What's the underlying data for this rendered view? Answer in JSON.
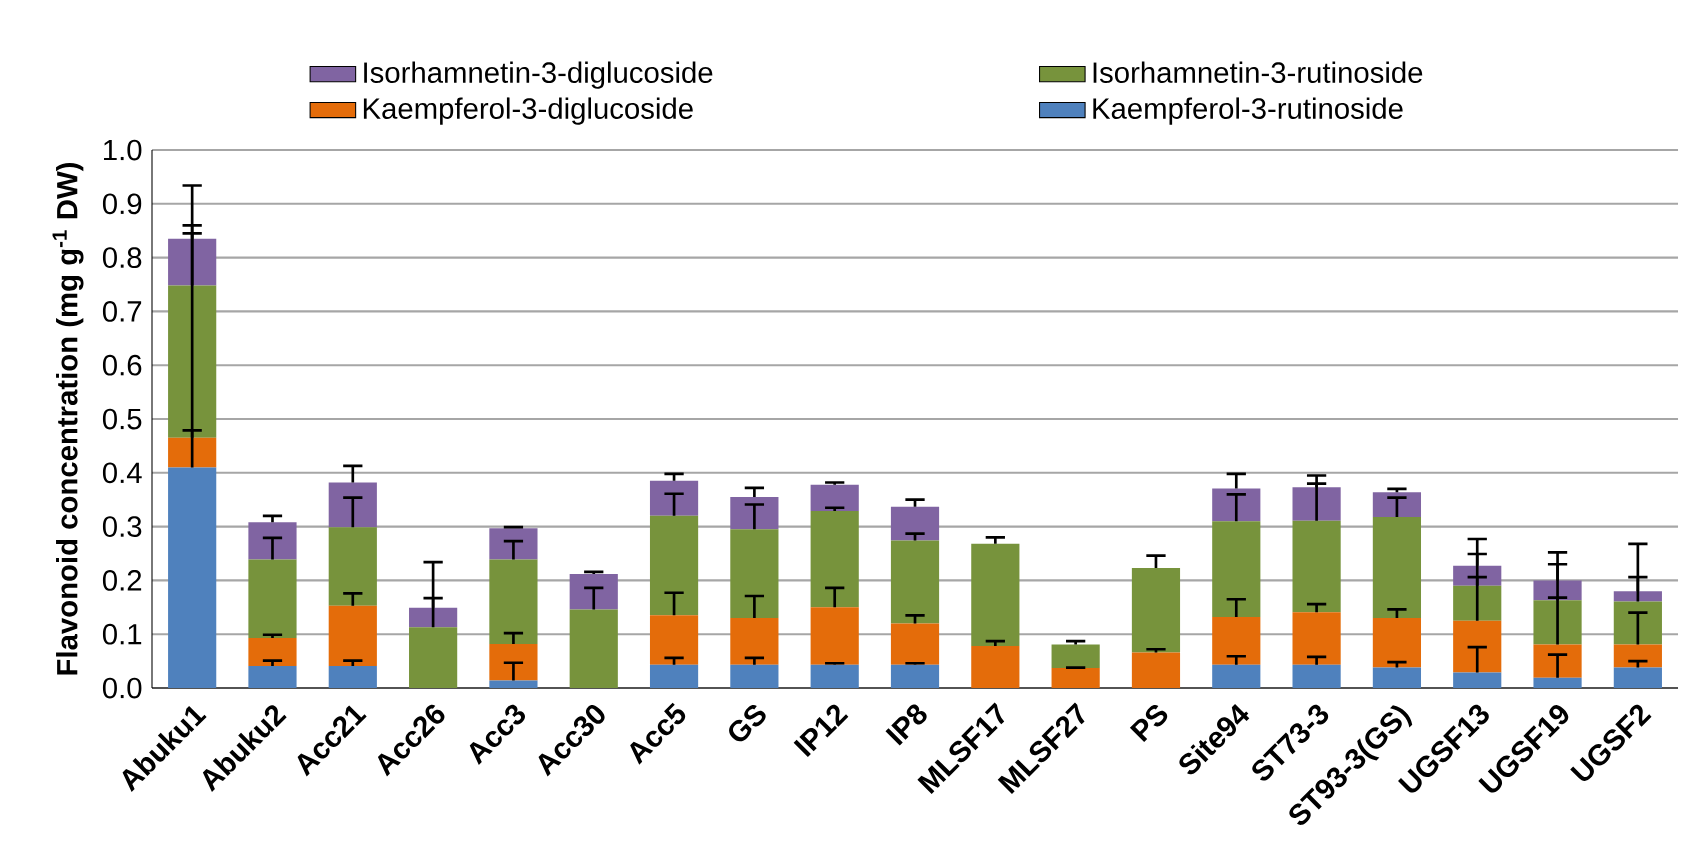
{
  "chart_data": {
    "type": "bar",
    "stacked": true,
    "ylabel": "Flavonoid concentration (mg g$^{-1}$ DW)",
    "categories": [
      "Abuku1",
      "Abuku2",
      "Acc21",
      "Acc26",
      "Acc3",
      "Acc30",
      "Acc5",
      "GS",
      "IP12",
      "IP8",
      "MLSF17",
      "MLSF27",
      "PS",
      "Site94",
      "ST73-3",
      "ST93-3(GS)",
      "UGSF13",
      "UGSF19",
      "UGSF2"
    ],
    "series": [
      {
        "name": "Kaempferol-3-rutinoside",
        "color": "#4f81bd",
        "values": [
          0.41,
          0.041,
          0.041,
          0,
          0.014,
          0,
          0.043,
          0.043,
          0.043,
          0.043,
          0,
          0,
          0,
          0.043,
          0.043,
          0.038,
          0.029,
          0.019,
          0.038
        ],
        "errors": [
          [
            0.41,
            0.479
          ],
          [
            0.041,
            0.051
          ],
          [
            0.041,
            0.051
          ],
          null,
          [
            0.014,
            0.047
          ],
          null,
          [
            0.043,
            0.056
          ],
          [
            0.043,
            0.056
          ],
          [
            0.043,
            0.046
          ],
          [
            0.043,
            0.046
          ],
          null,
          null,
          null,
          [
            0.043,
            0.059
          ],
          [
            0.043,
            0.058
          ],
          [
            0.038,
            0.048
          ],
          [
            0.029,
            0.076
          ],
          [
            0.019,
            0.062
          ],
          [
            0.038,
            0.05
          ]
        ]
      },
      {
        "name": "Kaempferol-3-diglucoside",
        "color": "#e46c0a",
        "values": [
          0.055,
          0.052,
          0.112,
          0,
          0.068,
          0,
          0.092,
          0.087,
          0.107,
          0.077,
          0.078,
          0.037,
          0.066,
          0.089,
          0.098,
          0.092,
          0.096,
          0.062,
          0.043
        ],
        "errors": [
          [
            0.465,
            0.86
          ],
          [
            0.093,
            0.099
          ],
          [
            0.153,
            0.176
          ],
          null,
          [
            0.082,
            0.102
          ],
          null,
          [
            0.135,
            0.177
          ],
          [
            0.13,
            0.171
          ],
          [
            0.15,
            0.186
          ],
          [
            0.12,
            0.135
          ],
          [
            0.078,
            0.087
          ],
          [
            0.037,
            0.038
          ],
          [
            0.066,
            0.072
          ],
          [
            0.132,
            0.165
          ],
          [
            0.141,
            0.156
          ],
          [
            0.13,
            0.146
          ],
          [
            0.125,
            0.206
          ],
          [
            0.081,
            0.168
          ],
          [
            0.081,
            0.14
          ]
        ]
      },
      {
        "name": "Isorhamnetin-3-rutinoside",
        "color": "#77933c",
        "values": [
          0.283,
          0.146,
          0.146,
          0.113,
          0.157,
          0.146,
          0.185,
          0.165,
          0.179,
          0.154,
          0.19,
          0.044,
          0.157,
          0.178,
          0.17,
          0.188,
          0.065,
          0.082,
          0.08
        ],
        "errors": [
          [
            0.748,
            0.845
          ],
          [
            0.239,
            0.279
          ],
          [
            0.299,
            0.354
          ],
          [
            0.113,
            0.167
          ],
          [
            0.239,
            0.273
          ],
          [
            0.146,
            0.186
          ],
          [
            0.32,
            0.361
          ],
          [
            0.295,
            0.341
          ],
          [
            0.329,
            0.335
          ],
          [
            0.274,
            0.287
          ],
          [
            0.268,
            0.28
          ],
          [
            0.081,
            0.087
          ],
          [
            0.223,
            0.246
          ],
          [
            0.31,
            0.36
          ],
          [
            0.311,
            0.38
          ],
          [
            0.318,
            0.354
          ],
          [
            0.19,
            0.249
          ],
          [
            0.163,
            0.23
          ],
          [
            0.161,
            0.206
          ]
        ]
      },
      {
        "name": "Isorhamnetin-3-diglucoside",
        "color": "#8064a2",
        "values": [
          0.087,
          0.069,
          0.083,
          0.036,
          0.058,
          0.066,
          0.065,
          0.06,
          0.049,
          0.063,
          0,
          0,
          0,
          0.061,
          0.062,
          0.046,
          0.037,
          0.037,
          0.019
        ],
        "errors": [
          [
            0.835,
            0.934
          ],
          [
            0.308,
            0.32
          ],
          [
            0.382,
            0.413
          ],
          [
            0.149,
            0.234
          ],
          [
            0.297,
            0.299
          ],
          [
            0.212,
            0.216
          ],
          [
            0.385,
            0.398
          ],
          [
            0.355,
            0.372
          ],
          [
            0.378,
            0.382
          ],
          [
            0.337,
            0.35
          ],
          null,
          null,
          null,
          [
            0.371,
            0.398
          ],
          [
            0.373,
            0.395
          ],
          [
            0.364,
            0.37
          ],
          [
            0.227,
            0.277
          ],
          [
            0.2,
            0.252
          ],
          [
            0.18,
            0.268
          ]
        ]
      }
    ],
    "ylim": [
      0,
      1.0
    ],
    "yticks": [
      {
        "value": 0,
        "label": "0.0"
      },
      {
        "value": 0.1,
        "label": "0.1"
      },
      {
        "value": 0.2,
        "label": "0.2"
      },
      {
        "value": 0.3,
        "label": "0.3"
      },
      {
        "value": 0.4,
        "label": "0.4"
      },
      {
        "value": 0.5,
        "label": "0.5"
      },
      {
        "value": 0.6,
        "label": "0.6"
      },
      {
        "value": 0.7,
        "label": "0.7"
      },
      {
        "value": 0.8,
        "label": "0.8"
      },
      {
        "value": 0.9,
        "label": "0.9"
      },
      {
        "value": 1.0,
        "label": "1.0"
      }
    ],
    "grid": "y",
    "legend": "top"
  }
}
